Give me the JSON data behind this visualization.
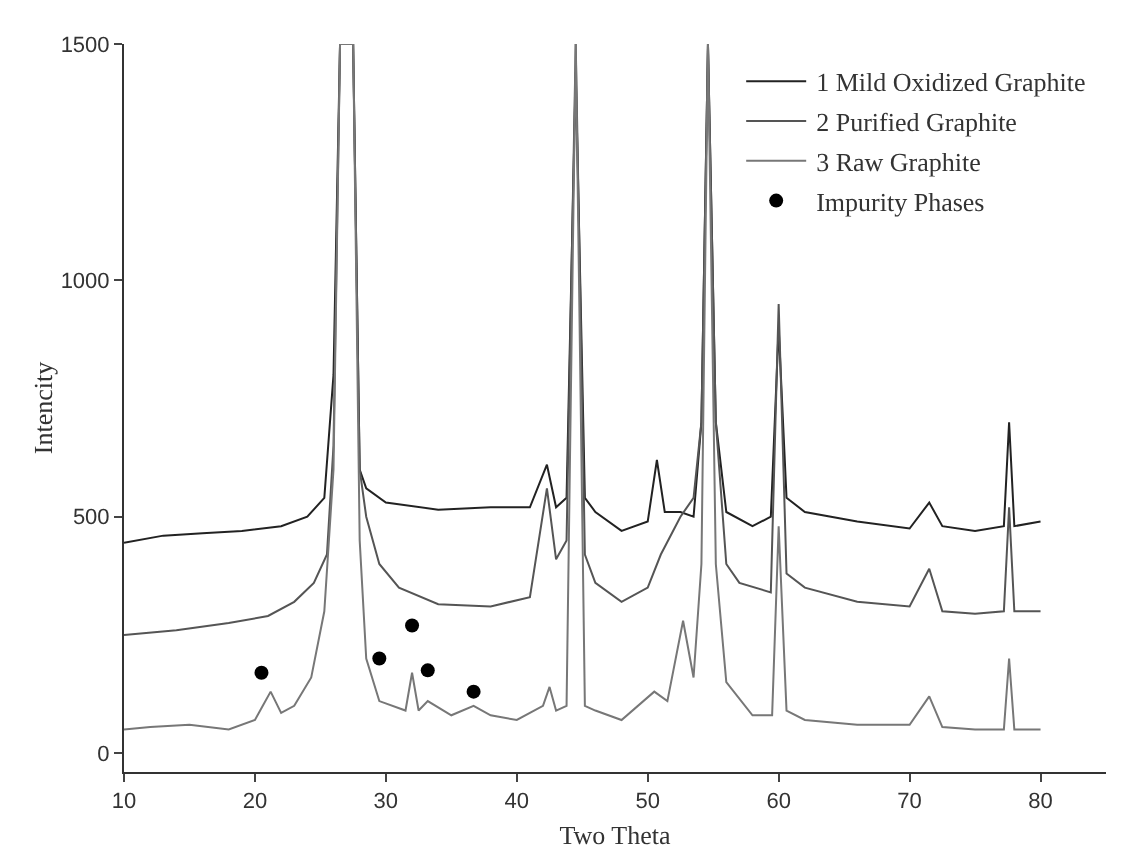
{
  "chart_data": {
    "type": "line",
    "xlabel": "Two Theta",
    "ylabel": "Intencity",
    "xlim": [
      10,
      85
    ],
    "ylim": [
      -40,
      1500
    ],
    "xticks": [
      10,
      20,
      30,
      40,
      50,
      60,
      70,
      80
    ],
    "yticks": [
      0,
      500,
      1000,
      1500
    ],
    "grid": false,
    "legend": "top right",
    "marker": "none",
    "line_style": "solid",
    "series": [
      {
        "name": "1 Mild Oxidized Graphite",
        "color": "#222222",
        "x": [
          10,
          13,
          16,
          19,
          22,
          24,
          25.3,
          26,
          26.5,
          27.5,
          28,
          28.5,
          30,
          34,
          38,
          41,
          42.3,
          43,
          43.8,
          44.5,
          45.2,
          46,
          48,
          50,
          50.7,
          51.3,
          52.5,
          53.5,
          54.1,
          54.6,
          55.2,
          56,
          58,
          59.4,
          60,
          60.6,
          62,
          66,
          70,
          71.5,
          72.5,
          75,
          77.2,
          77.6,
          78,
          80
        ],
        "values": [
          445,
          460,
          465,
          470,
          480,
          500,
          540,
          800,
          1500,
          1500,
          600,
          560,
          530,
          515,
          520,
          520,
          610,
          520,
          540,
          1440,
          540,
          510,
          470,
          490,
          620,
          510,
          510,
          500,
          700,
          1500,
          700,
          510,
          480,
          500,
          900,
          540,
          510,
          490,
          475,
          530,
          480,
          470,
          480,
          700,
          480,
          490
        ]
      },
      {
        "name": "2 Purified Graphite",
        "color": "#555555",
        "x": [
          10,
          14,
          18,
          21,
          23,
          24.5,
          25.5,
          26,
          26.5,
          27.5,
          28,
          28.5,
          29.5,
          31,
          34,
          38,
          41,
          42.3,
          43,
          43.8,
          44.5,
          45.2,
          46,
          48,
          50,
          51,
          52.5,
          53.5,
          54.1,
          54.6,
          55.2,
          56,
          57,
          59.4,
          60,
          60.6,
          62,
          66,
          70,
          71.5,
          72.5,
          75,
          77.2,
          77.6,
          78,
          80
        ],
        "values": [
          250,
          260,
          275,
          290,
          320,
          360,
          420,
          650,
          1500,
          1500,
          600,
          500,
          400,
          350,
          315,
          310,
          330,
          560,
          410,
          450,
          1500,
          420,
          360,
          320,
          350,
          420,
          500,
          540,
          700,
          1500,
          700,
          400,
          360,
          340,
          950,
          380,
          350,
          320,
          310,
          390,
          300,
          295,
          300,
          520,
          300,
          300
        ]
      },
      {
        "name": "3 Raw Graphite",
        "color": "#777777",
        "x": [
          10,
          12,
          15,
          18,
          20,
          20.6,
          21.2,
          22,
          23,
          24.3,
          25.3,
          26,
          26.5,
          27.5,
          28,
          28.5,
          29.5,
          31.5,
          32,
          32.5,
          33.2,
          35,
          36.7,
          38,
          40,
          42,
          42.5,
          43,
          43.8,
          44.5,
          45.2,
          46,
          48,
          50.5,
          51.5,
          52.7,
          53.5,
          54.1,
          54.6,
          55.2,
          56,
          58,
          59.5,
          60,
          60.6,
          62,
          66,
          70,
          71.5,
          72.5,
          75,
          77.2,
          77.6,
          78,
          80
        ],
        "values": [
          50,
          55,
          60,
          50,
          70,
          100,
          130,
          85,
          100,
          160,
          300,
          600,
          1500,
          1500,
          450,
          200,
          110,
          90,
          170,
          90,
          110,
          80,
          100,
          80,
          70,
          100,
          140,
          90,
          100,
          1500,
          100,
          90,
          70,
          130,
          110,
          280,
          160,
          400,
          1500,
          400,
          150,
          80,
          80,
          480,
          90,
          70,
          60,
          60,
          120,
          55,
          50,
          50,
          200,
          50,
          50
        ]
      },
      {
        "type": "scatter",
        "name": "Impurity Phases",
        "color": "#000000",
        "marker": "circle",
        "x": [
          20.5,
          29.5,
          32,
          33.2,
          36.7
        ],
        "values": [
          170,
          200,
          270,
          175,
          130
        ]
      }
    ]
  }
}
